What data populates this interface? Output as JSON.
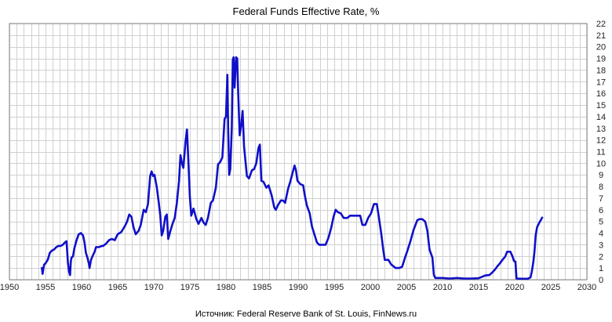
{
  "chart_data": {
    "type": "line",
    "title": "Federal Funds Effective Rate, %",
    "source_note": "Источник: Federal Reserve Bank of St. Louis, FinNews.ru",
    "xlim": [
      1950,
      2030
    ],
    "ylim": [
      0,
      22
    ],
    "x_ticks": [
      1950,
      1955,
      1960,
      1965,
      1970,
      1975,
      1980,
      1985,
      1990,
      1995,
      2000,
      2005,
      2010,
      2015,
      2020,
      2025,
      2030
    ],
    "y_ticks": [
      0,
      1,
      2,
      3,
      4,
      5,
      6,
      7,
      8,
      9,
      10,
      11,
      12,
      13,
      14,
      15,
      16,
      17,
      18,
      19,
      20,
      21,
      22
    ],
    "x_minor_step": 1,
    "y_axis_position": "right",
    "grid": true,
    "line_color": "#1010c8",
    "series": [
      {
        "points": [
          [
            1954.5,
            1.0
          ],
          [
            1954.6,
            0.5
          ],
          [
            1954.8,
            1.3
          ],
          [
            1955.0,
            1.4
          ],
          [
            1955.3,
            1.7
          ],
          [
            1955.6,
            2.3
          ],
          [
            1955.9,
            2.5
          ],
          [
            1956.2,
            2.6
          ],
          [
            1956.5,
            2.8
          ],
          [
            1956.8,
            2.9
          ],
          [
            1957.1,
            2.9
          ],
          [
            1957.4,
            3.0
          ],
          [
            1957.7,
            3.2
          ],
          [
            1957.9,
            3.3
          ],
          [
            1958.0,
            2.5
          ],
          [
            1958.1,
            1.5
          ],
          [
            1958.25,
            0.7
          ],
          [
            1958.4,
            0.4
          ],
          [
            1958.5,
            1.5
          ],
          [
            1958.6,
            1.9
          ],
          [
            1958.8,
            2.0
          ],
          [
            1959.0,
            2.7
          ],
          [
            1959.3,
            3.4
          ],
          [
            1959.6,
            3.9
          ],
          [
            1959.9,
            4.0
          ],
          [
            1960.2,
            3.8
          ],
          [
            1960.4,
            3.2
          ],
          [
            1960.6,
            2.3
          ],
          [
            1960.8,
            1.9
          ],
          [
            1961.0,
            1.4
          ],
          [
            1961.1,
            1.0
          ],
          [
            1961.3,
            1.7
          ],
          [
            1961.5,
            2.0
          ],
          [
            1961.8,
            2.4
          ],
          [
            1962.0,
            2.8
          ],
          [
            1962.4,
            2.8
          ],
          [
            1962.8,
            2.9
          ],
          [
            1963.0,
            2.9
          ],
          [
            1963.4,
            3.1
          ],
          [
            1963.8,
            3.4
          ],
          [
            1964.2,
            3.5
          ],
          [
            1964.6,
            3.4
          ],
          [
            1965.0,
            3.9
          ],
          [
            1965.5,
            4.1
          ],
          [
            1966.0,
            4.6
          ],
          [
            1966.3,
            5.0
          ],
          [
            1966.6,
            5.6
          ],
          [
            1966.9,
            5.4
          ],
          [
            1967.2,
            4.5
          ],
          [
            1967.5,
            3.9
          ],
          [
            1967.9,
            4.2
          ],
          [
            1968.2,
            4.7
          ],
          [
            1968.6,
            6.0
          ],
          [
            1968.9,
            5.8
          ],
          [
            1969.2,
            6.5
          ],
          [
            1969.5,
            8.9
          ],
          [
            1969.7,
            9.3
          ],
          [
            1969.9,
            8.9
          ],
          [
            1970.1,
            9.0
          ],
          [
            1970.4,
            8.0
          ],
          [
            1970.7,
            6.6
          ],
          [
            1970.9,
            5.5
          ],
          [
            1971.1,
            3.8
          ],
          [
            1971.3,
            4.2
          ],
          [
            1971.6,
            5.4
          ],
          [
            1971.8,
            5.6
          ],
          [
            1972.0,
            3.5
          ],
          [
            1972.3,
            4.2
          ],
          [
            1972.6,
            4.8
          ],
          [
            1972.9,
            5.3
          ],
          [
            1973.2,
            6.6
          ],
          [
            1973.5,
            8.5
          ],
          [
            1973.7,
            10.7
          ],
          [
            1973.9,
            10.0
          ],
          [
            1974.1,
            9.6
          ],
          [
            1974.4,
            11.9
          ],
          [
            1974.6,
            12.9
          ],
          [
            1974.8,
            10.0
          ],
          [
            1975.0,
            7.1
          ],
          [
            1975.2,
            5.5
          ],
          [
            1975.5,
            6.1
          ],
          [
            1975.9,
            5.2
          ],
          [
            1976.2,
            4.8
          ],
          [
            1976.6,
            5.3
          ],
          [
            1976.9,
            4.9
          ],
          [
            1977.2,
            4.7
          ],
          [
            1977.5,
            5.3
          ],
          [
            1977.9,
            6.6
          ],
          [
            1978.2,
            6.8
          ],
          [
            1978.6,
            7.9
          ],
          [
            1978.9,
            9.9
          ],
          [
            1979.2,
            10.1
          ],
          [
            1979.5,
            10.5
          ],
          [
            1979.8,
            13.8
          ],
          [
            1980.0,
            14.0
          ],
          [
            1980.2,
            17.6
          ],
          [
            1980.3,
            13.0
          ],
          [
            1980.45,
            9.0
          ],
          [
            1980.6,
            9.5
          ],
          [
            1980.8,
            13.0
          ],
          [
            1980.95,
            18.9
          ],
          [
            1981.05,
            19.1
          ],
          [
            1981.2,
            16.5
          ],
          [
            1981.4,
            19.1
          ],
          [
            1981.55,
            19.0
          ],
          [
            1981.7,
            16.0
          ],
          [
            1981.9,
            12.4
          ],
          [
            1982.1,
            13.2
          ],
          [
            1982.3,
            14.5
          ],
          [
            1982.5,
            11.5
          ],
          [
            1982.7,
            10.2
          ],
          [
            1982.9,
            8.9
          ],
          [
            1983.2,
            8.7
          ],
          [
            1983.6,
            9.4
          ],
          [
            1983.9,
            9.5
          ],
          [
            1984.2,
            10.0
          ],
          [
            1984.5,
            11.3
          ],
          [
            1984.7,
            11.6
          ],
          [
            1984.9,
            8.5
          ],
          [
            1985.2,
            8.4
          ],
          [
            1985.6,
            7.9
          ],
          [
            1985.9,
            8.1
          ],
          [
            1986.3,
            7.3
          ],
          [
            1986.7,
            6.2
          ],
          [
            1986.9,
            6.0
          ],
          [
            1987.2,
            6.4
          ],
          [
            1987.6,
            6.8
          ],
          [
            1987.9,
            6.8
          ],
          [
            1988.2,
            6.6
          ],
          [
            1988.6,
            7.8
          ],
          [
            1988.9,
            8.4
          ],
          [
            1989.2,
            9.1
          ],
          [
            1989.5,
            9.8
          ],
          [
            1989.7,
            9.4
          ],
          [
            1989.9,
            8.5
          ],
          [
            1990.3,
            8.2
          ],
          [
            1990.7,
            8.1
          ],
          [
            1990.9,
            7.3
          ],
          [
            1991.2,
            6.4
          ],
          [
            1991.6,
            5.7
          ],
          [
            1991.9,
            4.6
          ],
          [
            1992.2,
            4.0
          ],
          [
            1992.6,
            3.2
          ],
          [
            1992.9,
            3.0
          ],
          [
            1993.3,
            3.0
          ],
          [
            1993.8,
            3.0
          ],
          [
            1994.2,
            3.6
          ],
          [
            1994.6,
            4.5
          ],
          [
            1994.9,
            5.4
          ],
          [
            1995.2,
            6.0
          ],
          [
            1995.5,
            5.8
          ],
          [
            1995.9,
            5.7
          ],
          [
            1996.3,
            5.3
          ],
          [
            1996.8,
            5.3
          ],
          [
            1997.2,
            5.5
          ],
          [
            1997.7,
            5.5
          ],
          [
            1998.2,
            5.5
          ],
          [
            1998.6,
            5.5
          ],
          [
            1998.9,
            4.7
          ],
          [
            1999.3,
            4.7
          ],
          [
            1999.7,
            5.3
          ],
          [
            2000.1,
            5.7
          ],
          [
            2000.5,
            6.5
          ],
          [
            2000.9,
            6.5
          ],
          [
            2001.2,
            5.3
          ],
          [
            2001.5,
            4.0
          ],
          [
            2001.8,
            2.5
          ],
          [
            2002.0,
            1.7
          ],
          [
            2002.5,
            1.7
          ],
          [
            2002.9,
            1.3
          ],
          [
            2003.5,
            1.0
          ],
          [
            2004.0,
            1.0
          ],
          [
            2004.4,
            1.1
          ],
          [
            2004.8,
            1.9
          ],
          [
            2005.2,
            2.6
          ],
          [
            2005.6,
            3.4
          ],
          [
            2006.0,
            4.3
          ],
          [
            2006.5,
            5.1
          ],
          [
            2006.8,
            5.2
          ],
          [
            2007.2,
            5.2
          ],
          [
            2007.6,
            5.0
          ],
          [
            2007.9,
            4.2
          ],
          [
            2008.2,
            2.6
          ],
          [
            2008.6,
            1.9
          ],
          [
            2008.8,
            0.4
          ],
          [
            2009.0,
            0.15
          ],
          [
            2010.0,
            0.15
          ],
          [
            2011.0,
            0.1
          ],
          [
            2012.0,
            0.15
          ],
          [
            2013.0,
            0.1
          ],
          [
            2014.0,
            0.1
          ],
          [
            2015.0,
            0.13
          ],
          [
            2015.95,
            0.36
          ],
          [
            2016.5,
            0.4
          ],
          [
            2016.95,
            0.65
          ],
          [
            2017.3,
            0.9
          ],
          [
            2017.6,
            1.15
          ],
          [
            2017.95,
            1.4
          ],
          [
            2018.3,
            1.7
          ],
          [
            2018.7,
            2.0
          ],
          [
            2018.95,
            2.4
          ],
          [
            2019.4,
            2.4
          ],
          [
            2019.7,
            2.0
          ],
          [
            2019.9,
            1.6
          ],
          [
            2020.1,
            1.55
          ],
          [
            2020.25,
            0.1
          ],
          [
            2021.0,
            0.08
          ],
          [
            2021.8,
            0.08
          ],
          [
            2022.2,
            0.2
          ],
          [
            2022.4,
            0.8
          ],
          [
            2022.6,
            1.6
          ],
          [
            2022.75,
            2.5
          ],
          [
            2022.9,
            3.8
          ],
          [
            2023.1,
            4.5
          ],
          [
            2023.4,
            4.9
          ],
          [
            2023.6,
            5.1
          ],
          [
            2023.8,
            5.33
          ]
        ]
      }
    ]
  }
}
